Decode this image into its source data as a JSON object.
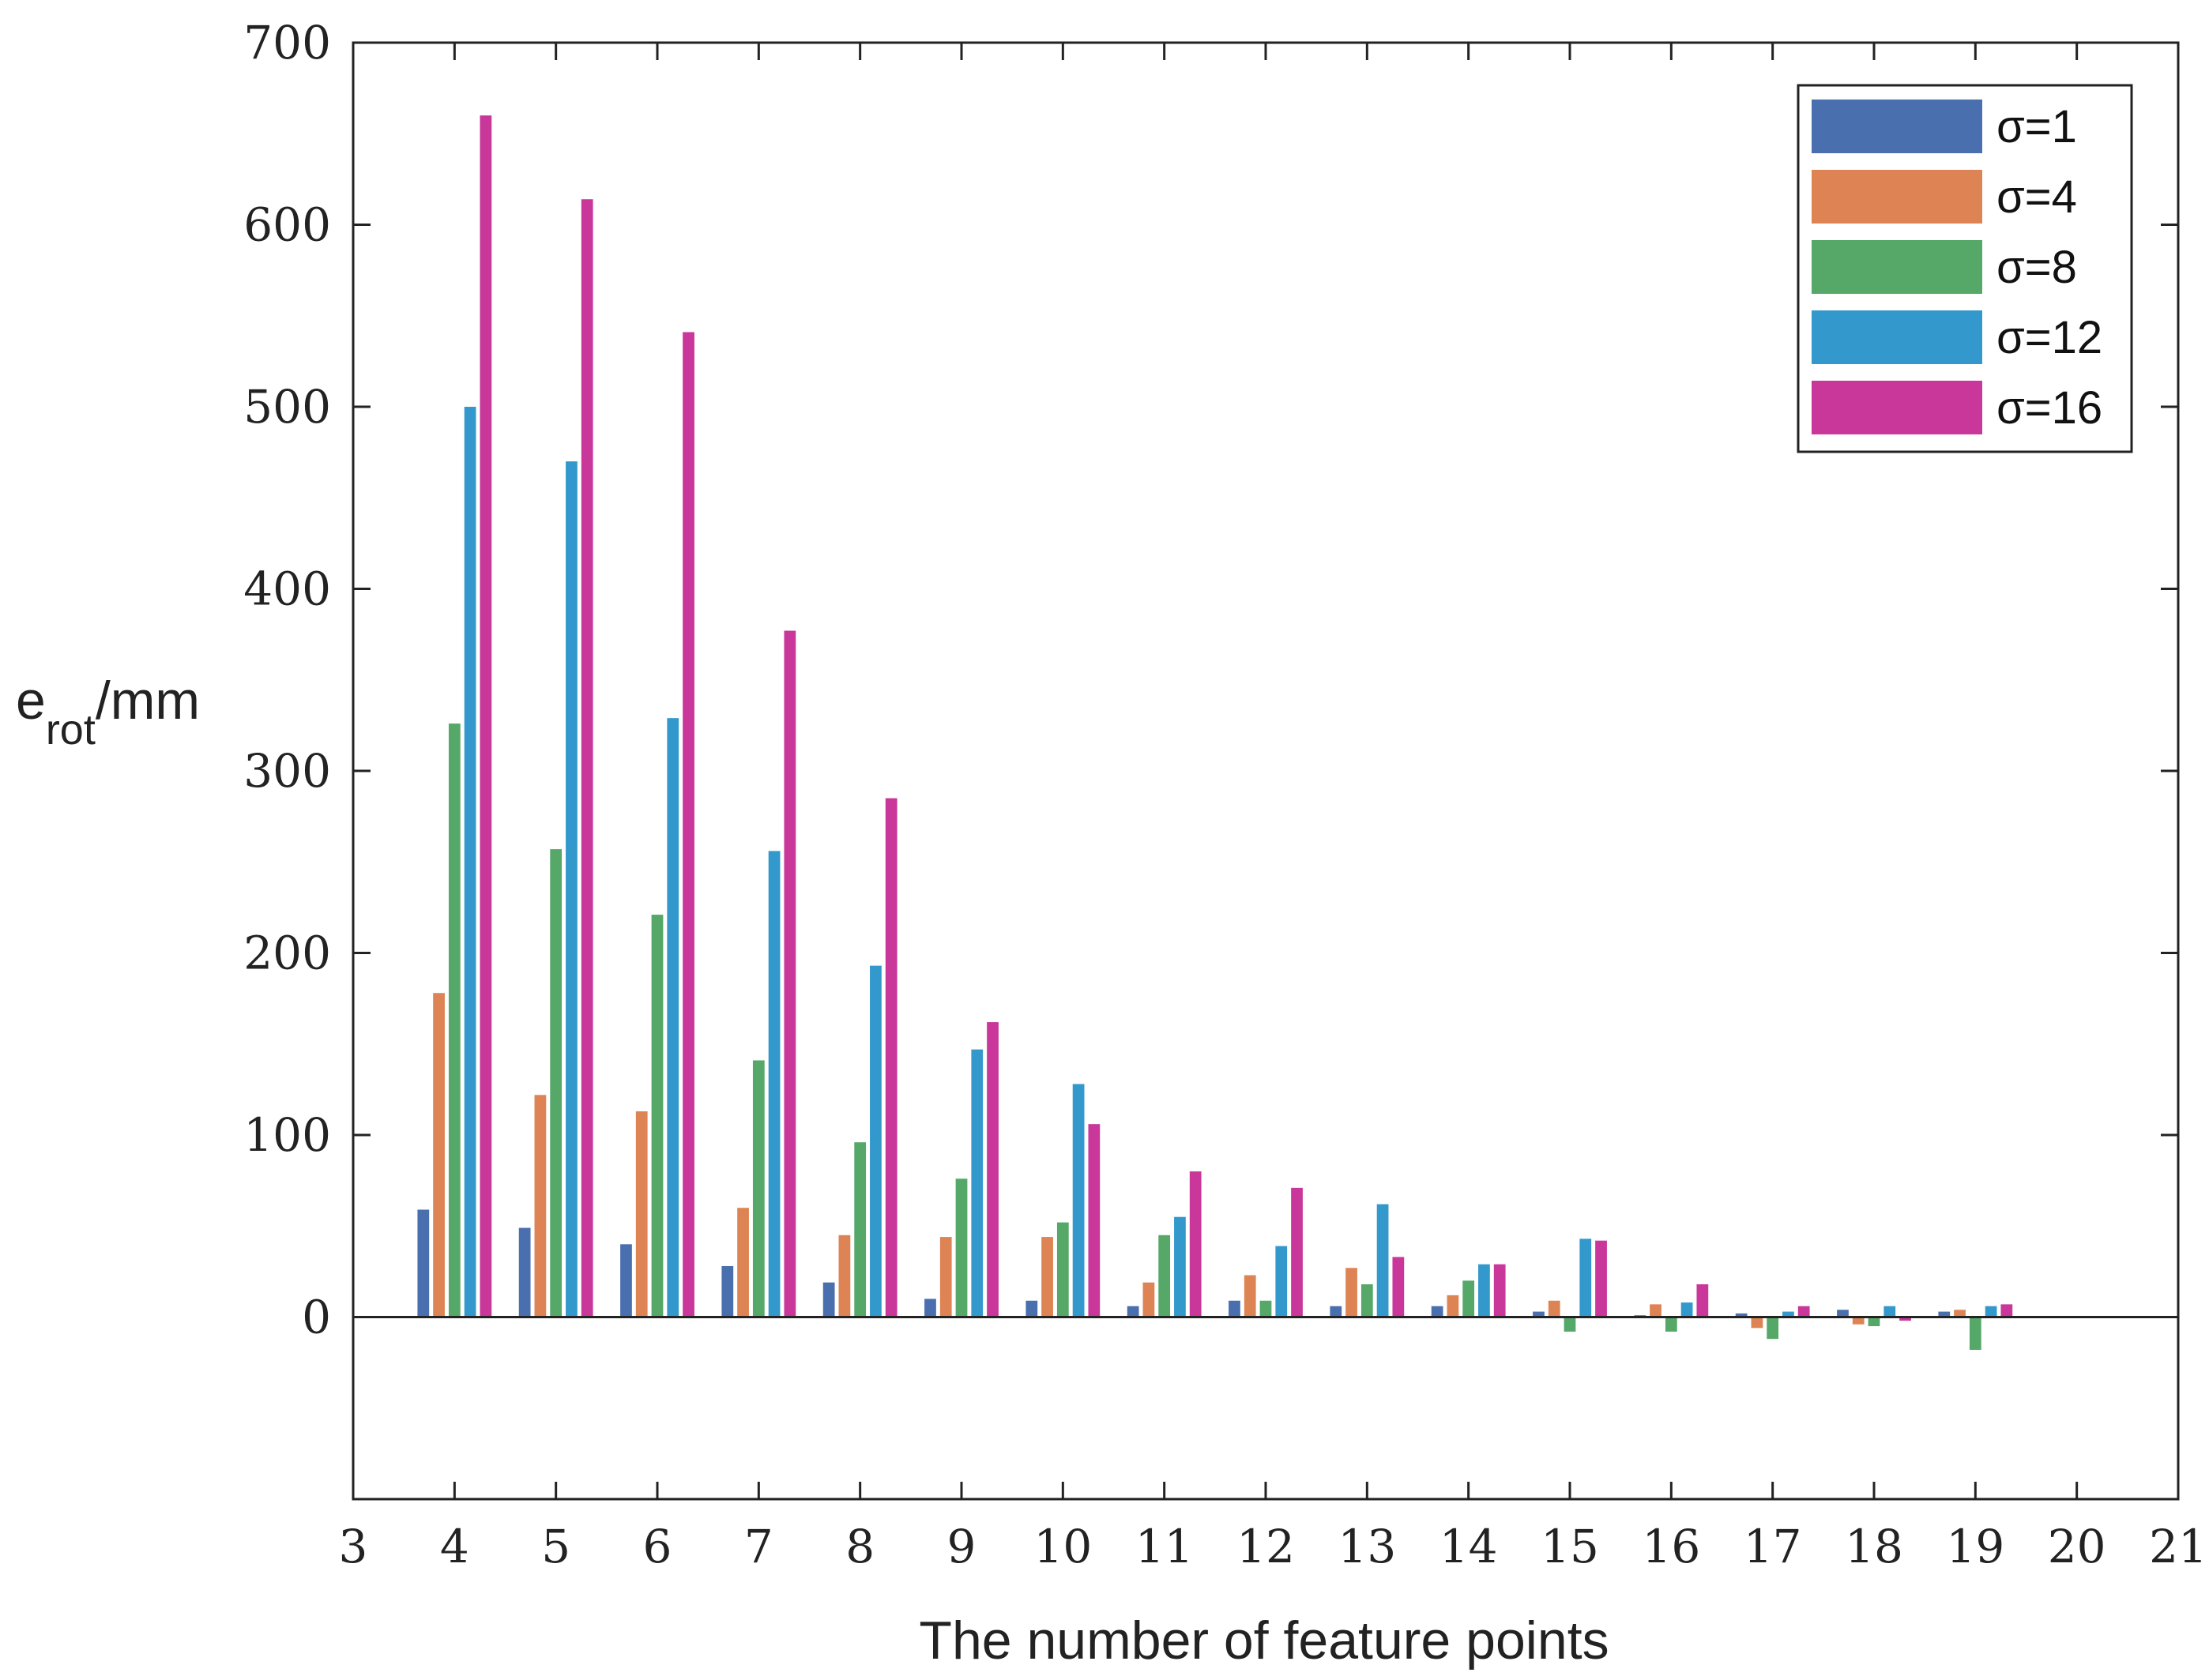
{
  "chart_data": {
    "type": "bar",
    "title": "",
    "xlabel": "The number of feature points",
    "ylabel_main": "e",
    "ylabel_sub": "rot",
    "ylabel_unit": "/mm",
    "x": [
      4,
      5,
      6,
      7,
      8,
      9,
      10,
      11,
      12,
      13,
      14,
      15,
      16,
      17,
      18,
      19
    ],
    "xlim": [
      3,
      21
    ],
    "ylim": [
      -100,
      700
    ],
    "xticks": [
      3,
      4,
      5,
      6,
      7,
      8,
      9,
      10,
      11,
      12,
      13,
      14,
      15,
      16,
      17,
      18,
      19,
      20,
      21
    ],
    "yticks": [
      0,
      100,
      200,
      300,
      400,
      500,
      600,
      700
    ],
    "grid": false,
    "legend_position": "top-right",
    "series": [
      {
        "name": "σ=1",
        "color": "#4a6fae",
        "values": [
          59,
          49,
          40,
          28,
          19,
          10,
          9,
          6,
          9,
          6,
          6,
          3,
          1,
          2,
          4,
          3
        ]
      },
      {
        "name": "σ=4",
        "color": "#de8454",
        "values": [
          178,
          122,
          113,
          60,
          45,
          44,
          44,
          19,
          23,
          27,
          12,
          9,
          7,
          -6,
          -4,
          4
        ]
      },
      {
        "name": "σ=8",
        "color": "#55a868",
        "values": [
          326,
          257,
          221,
          141,
          96,
          76,
          52,
          45,
          9,
          18,
          20,
          -8,
          -8,
          -12,
          -5,
          -18
        ]
      },
      {
        "name": "σ=12",
        "color": "#3399cc",
        "values": [
          500,
          470,
          329,
          256,
          193,
          147,
          128,
          55,
          39,
          62,
          29,
          43,
          8,
          3,
          6,
          6
        ]
      },
      {
        "name": "σ=16",
        "color": "#c83799",
        "values": [
          660,
          614,
          541,
          377,
          285,
          162,
          106,
          80,
          71,
          33,
          29,
          42,
          18,
          6,
          -2,
          7
        ]
      }
    ]
  }
}
